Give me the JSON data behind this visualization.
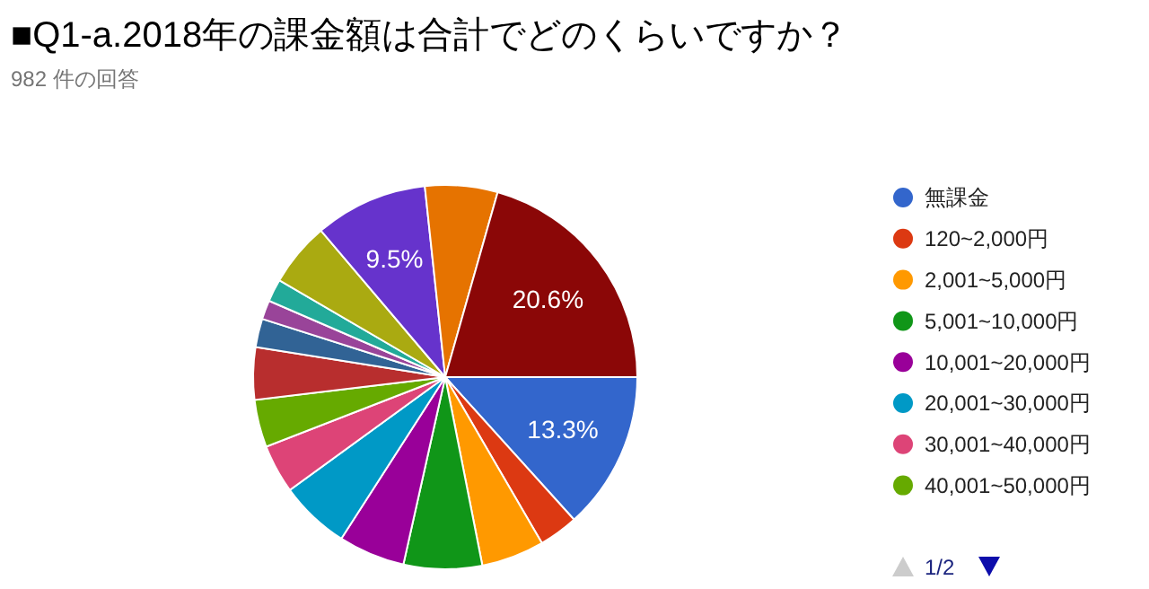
{
  "chart_data": {
    "type": "pie",
    "title": "■Q1-a.2018年の課金額は合計でどのくらいですか？",
    "subtitle": "982 件の回答",
    "categories": [
      "無課金",
      "120~2,000円",
      "2,001~5,000円",
      "5,001~10,000円",
      "10,001~20,000円",
      "20,001~30,000円",
      "30,001~40,000円",
      "40,001~50,000円",
      null,
      null,
      null,
      null,
      null,
      null,
      null,
      null
    ],
    "values": [
      13.3,
      3.3,
      5.3,
      6.6,
      5.6,
      5.9,
      4.1,
      4.0,
      4.4,
      2.4,
      1.6,
      1.9,
      5.4,
      9.5,
      6.1,
      20.6
    ],
    "value_labels": [
      "13.3%",
      null,
      null,
      null,
      null,
      null,
      null,
      null,
      null,
      null,
      null,
      null,
      null,
      "9.5%",
      null,
      "20.6%"
    ],
    "colors": [
      "#3366cc",
      "#dc3912",
      "#ff9900",
      "#109618",
      "#990099",
      "#0099c6",
      "#dd4477",
      "#66aa00",
      "#b82e2e",
      "#316395",
      "#994499",
      "#22aa99",
      "#aaaa11",
      "#6633cc",
      "#e67300",
      "#8b0707"
    ],
    "legend": "right",
    "annotations": [
      "1/2"
    ]
  }
}
